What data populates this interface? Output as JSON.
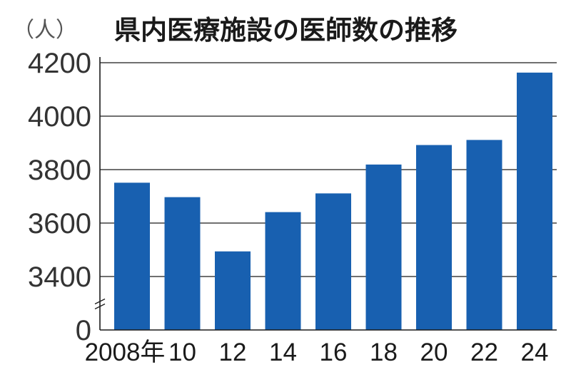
{
  "chart_data": {
    "type": "bar",
    "title": "県内医療施設の医師数の推移",
    "unit_label": "（人）",
    "categories": [
      "2008年",
      "10",
      "12",
      "14",
      "16",
      "18",
      "20",
      "22",
      "24"
    ],
    "values": [
      3751,
      3697,
      3494,
      3641,
      3711,
      3819,
      3892,
      3911,
      4163
    ],
    "y_axis": {
      "ticks": [
        {
          "value": 0,
          "label": "0"
        },
        {
          "value": 3400,
          "label": "3400"
        },
        {
          "value": 3600,
          "label": "3600"
        },
        {
          "value": 3800,
          "label": "3800"
        },
        {
          "value": 4000,
          "label": "4000"
        },
        {
          "value": 4200,
          "label": "4200"
        }
      ],
      "broken_axis": true,
      "break_between": [
        0,
        3400
      ],
      "visible_range": [
        3400,
        4200
      ]
    },
    "grid": "horizontal",
    "bar_color": "#1860b0"
  }
}
